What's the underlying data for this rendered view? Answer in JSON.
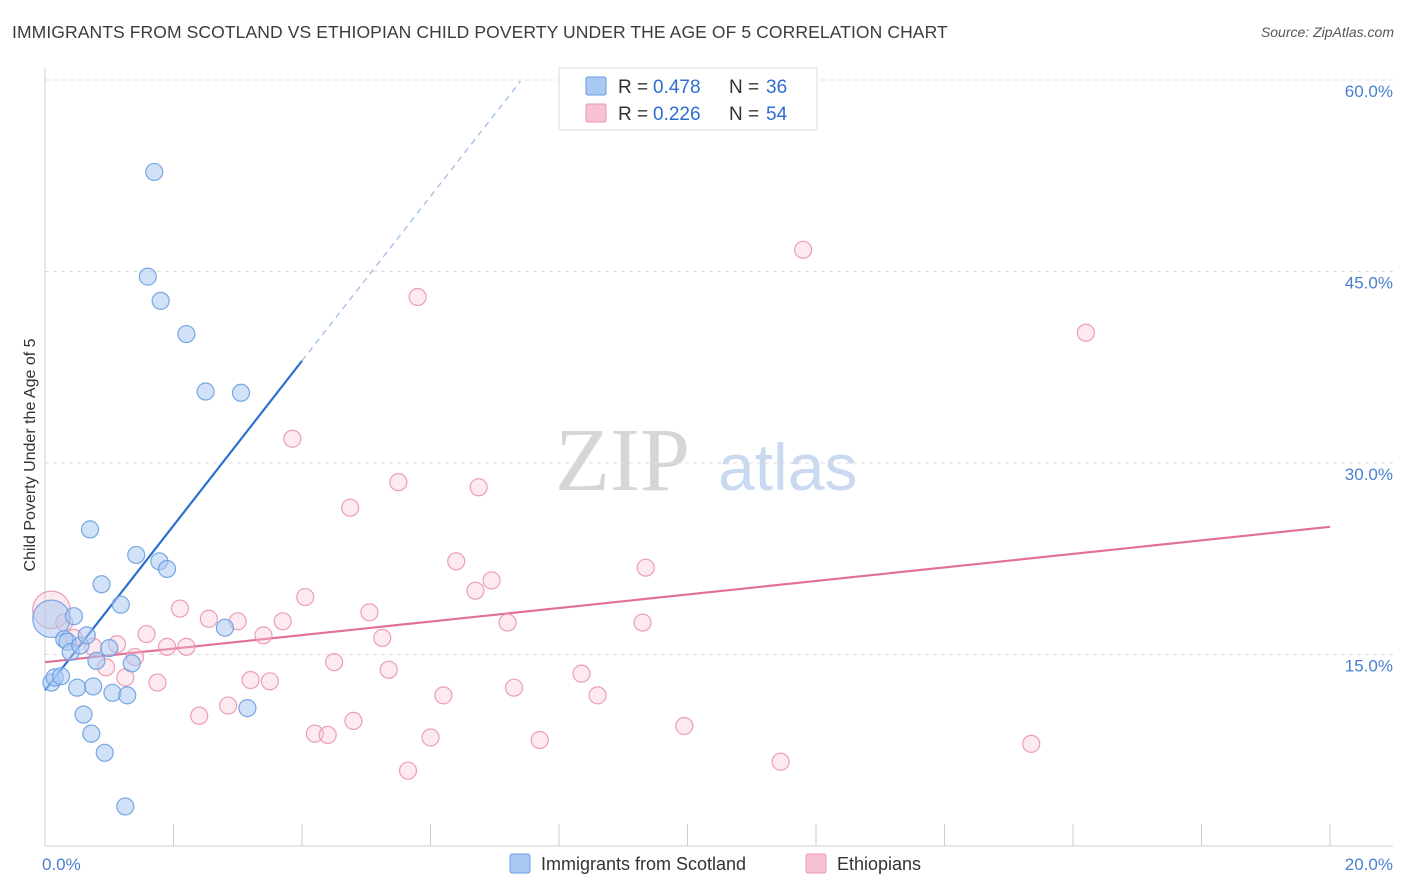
{
  "header": {
    "title": "IMMIGRANTS FROM SCOTLAND VS ETHIOPIAN CHILD POVERTY UNDER THE AGE OF 5 CORRELATION CHART",
    "source": "Source: ZipAtlas.com"
  },
  "watermark": {
    "zip": "ZIP",
    "atlas": "atlas"
  },
  "colors": {
    "blue_fill": "#a9c9f2",
    "blue_stroke": "#6a9ee0",
    "blue_line": "#2c6fd1",
    "pink_fill": "#f7c3d3",
    "pink_stroke": "#eb94b0",
    "pink_line": "#e2709a",
    "grid": "#dddddd",
    "tick_text": "#4a7fd0"
  },
  "chart_data": {
    "type": "scatter",
    "title": "IMMIGRANTS FROM SCOTLAND VS ETHIOPIAN CHILD POVERTY UNDER THE AGE OF 5 CORRELATION CHART",
    "xlabel": "",
    "ylabel": "Child Poverty Under the Age of 5",
    "xlim": [
      0,
      20
    ],
    "ylim": [
      0,
      60
    ],
    "x_tick_labels": [
      "0.0%",
      "20.0%"
    ],
    "y_ticks": [
      15,
      30,
      45,
      60
    ],
    "y_tick_labels": [
      "15.0%",
      "30.0%",
      "45.0%",
      "60.0%"
    ],
    "legend": [
      {
        "name": "Immigrants from Scotland",
        "r_label": "R =",
        "r": "0.478",
        "n_label": "N =",
        "n": "36"
      },
      {
        "name": "Ethiopians",
        "r_label": "R =",
        "r": "0.226",
        "n_label": "N =",
        "n": "54"
      }
    ],
    "series": [
      {
        "name": "Immigrants from Scotland",
        "trend": {
          "x0": 0.0,
          "y0": 12.2,
          "x1": 4.0,
          "y1": 38.0,
          "dash_x1": 7.4,
          "dash_y1": 59.9
        },
        "points": [
          [
            0.1,
            17.8,
            2.2
          ],
          [
            0.1,
            12.8,
            1
          ],
          [
            0.15,
            13.2,
            1
          ],
          [
            0.25,
            13.3,
            1
          ],
          [
            0.45,
            18.0,
            1
          ],
          [
            0.3,
            16.2,
            1
          ],
          [
            0.35,
            16.0,
            1
          ],
          [
            0.4,
            15.2,
            1
          ],
          [
            0.5,
            12.4,
            1
          ],
          [
            0.55,
            15.7,
            1
          ],
          [
            0.6,
            10.3,
            1
          ],
          [
            0.65,
            16.5,
            1
          ],
          [
            0.7,
            24.8,
            1
          ],
          [
            0.72,
            8.8,
            1
          ],
          [
            0.75,
            12.5,
            1
          ],
          [
            0.8,
            14.5,
            1
          ],
          [
            0.88,
            20.5,
            1
          ],
          [
            0.93,
            7.3,
            1
          ],
          [
            1.0,
            15.5,
            1
          ],
          [
            1.05,
            12.0,
            1
          ],
          [
            1.18,
            18.9,
            1
          ],
          [
            1.25,
            3.1,
            1
          ],
          [
            1.28,
            11.8,
            1
          ],
          [
            1.35,
            14.3,
            1
          ],
          [
            1.42,
            22.8,
            1
          ],
          [
            1.6,
            44.6,
            1
          ],
          [
            1.7,
            52.8,
            1
          ],
          [
            1.78,
            22.3,
            1
          ],
          [
            1.8,
            42.7,
            1
          ],
          [
            1.9,
            21.7,
            1
          ],
          [
            2.2,
            40.1,
            1
          ],
          [
            2.5,
            35.6,
            1
          ],
          [
            2.8,
            17.1,
            1
          ],
          [
            3.05,
            35.5,
            1
          ],
          [
            3.15,
            10.8,
            1
          ]
        ]
      },
      {
        "name": "Ethiopians",
        "trend": {
          "x0": 0.0,
          "y0": 14.4,
          "x1": 20.0,
          "y1": 25.0
        },
        "points": [
          [
            0.1,
            18.5,
            2.2
          ],
          [
            0.3,
            17.5,
            1
          ],
          [
            0.45,
            16.3,
            1
          ],
          [
            0.75,
            15.6,
            1
          ],
          [
            0.95,
            14.0,
            1
          ],
          [
            1.12,
            15.8,
            1
          ],
          [
            1.25,
            13.2,
            1
          ],
          [
            1.4,
            14.8,
            1
          ],
          [
            1.58,
            16.6,
            1
          ],
          [
            1.75,
            12.8,
            1
          ],
          [
            1.9,
            15.6,
            1
          ],
          [
            2.1,
            18.6,
            1
          ],
          [
            2.2,
            15.6,
            1
          ],
          [
            2.4,
            10.2,
            1
          ],
          [
            2.55,
            17.8,
            1
          ],
          [
            2.85,
            11.0,
            1
          ],
          [
            3.0,
            17.6,
            1
          ],
          [
            3.2,
            13.0,
            1
          ],
          [
            3.4,
            16.5,
            1
          ],
          [
            3.5,
            12.9,
            1
          ],
          [
            3.7,
            17.6,
            1
          ],
          [
            3.85,
            31.9,
            1
          ],
          [
            4.05,
            19.5,
            1
          ],
          [
            4.2,
            8.8,
            1
          ],
          [
            4.4,
            8.7,
            1
          ],
          [
            4.5,
            14.4,
            1
          ],
          [
            4.75,
            26.5,
            1
          ],
          [
            4.8,
            9.8,
            1
          ],
          [
            5.05,
            18.3,
            1
          ],
          [
            5.25,
            16.3,
            1
          ],
          [
            5.35,
            13.8,
            1
          ],
          [
            5.5,
            28.5,
            1
          ],
          [
            5.65,
            5.9,
            1
          ],
          [
            5.8,
            43.0,
            1
          ],
          [
            6.0,
            8.5,
            1
          ],
          [
            6.2,
            11.8,
            1
          ],
          [
            6.4,
            22.3,
            1
          ],
          [
            6.7,
            20.0,
            1
          ],
          [
            6.75,
            28.1,
            1
          ],
          [
            6.95,
            20.8,
            1
          ],
          [
            7.2,
            17.5,
            1
          ],
          [
            7.3,
            12.4,
            1
          ],
          [
            7.7,
            8.3,
            1
          ],
          [
            8.35,
            13.5,
            1
          ],
          [
            8.6,
            11.8,
            1
          ],
          [
            9.3,
            17.5,
            1
          ],
          [
            9.35,
            21.8,
            1
          ],
          [
            9.95,
            9.4,
            1
          ],
          [
            11.45,
            6.6,
            1
          ],
          [
            11.8,
            46.7,
            1
          ],
          [
            15.35,
            8.0,
            1
          ],
          [
            16.2,
            40.2,
            1
          ]
        ]
      }
    ]
  }
}
